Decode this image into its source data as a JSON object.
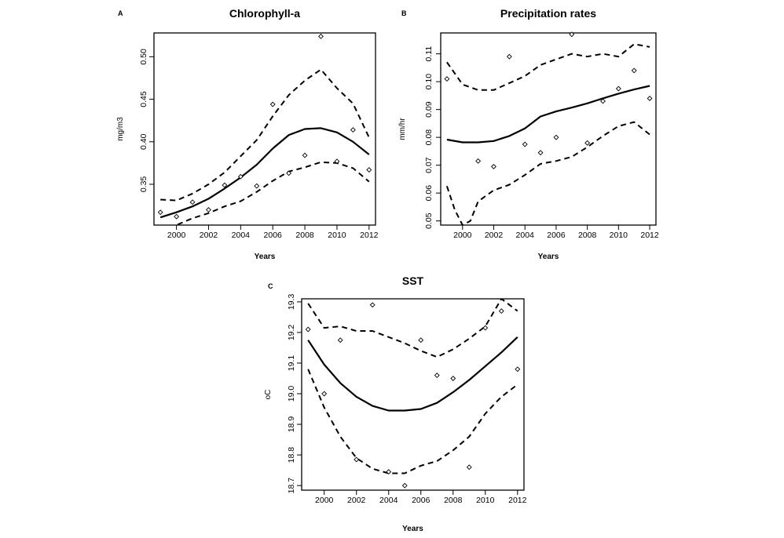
{
  "chart_data": [
    {
      "panel": "A",
      "type": "line",
      "title": "Chlorophyll-a",
      "xlabel": "Years",
      "ylabel": "mg/m3",
      "xlim": [
        1998.6,
        2012.4
      ],
      "ylim": [
        0.302,
        0.528
      ],
      "xticks": [
        2000,
        2002,
        2004,
        2006,
        2008,
        2010,
        2012
      ],
      "yticks": [
        0.35,
        0.4,
        0.45,
        0.5
      ],
      "ytick_labels": [
        "0.35",
        "0.40",
        "0.45",
        "0.50"
      ],
      "points": {
        "x": [
          1999,
          2000,
          2001,
          2002,
          2003,
          2004,
          2005,
          2006,
          2007,
          2008,
          2009,
          2010,
          2011,
          2012
        ],
        "y": [
          0.317,
          0.312,
          0.329,
          0.32,
          0.349,
          0.359,
          0.348,
          0.444,
          0.363,
          0.384,
          0.524,
          0.377,
          0.414,
          0.367
        ]
      },
      "fit": {
        "x": [
          1999,
          2000,
          2001,
          2002,
          2003,
          2004,
          2005,
          2006,
          2007,
          2008,
          2009,
          2010,
          2011,
          2012
        ],
        "y": [
          0.311,
          0.317,
          0.324,
          0.333,
          0.345,
          0.358,
          0.373,
          0.392,
          0.408,
          0.415,
          0.416,
          0.411,
          0.4,
          0.385
        ]
      },
      "upper": {
        "x": [
          1999,
          2000,
          2001,
          2002,
          2003,
          2004,
          2005,
          2006,
          2007,
          2008,
          2009,
          2010,
          2011,
          2012
        ],
        "y": [
          0.332,
          0.331,
          0.339,
          0.35,
          0.364,
          0.383,
          0.402,
          0.43,
          0.455,
          0.472,
          0.485,
          0.463,
          0.445,
          0.405
        ]
      },
      "lower": {
        "x": [
          1999.5,
          2000,
          2001,
          2002,
          2003,
          2004,
          2005,
          2006,
          2007,
          2008,
          2009,
          2010,
          2011,
          2012
        ],
        "y": [
          0.3,
          0.302,
          0.31,
          0.316,
          0.324,
          0.33,
          0.341,
          0.354,
          0.365,
          0.37,
          0.376,
          0.375,
          0.369,
          0.353
        ]
      }
    },
    {
      "panel": "B",
      "type": "line",
      "title": "Precipitation rates",
      "xlabel": "Years",
      "ylabel": "mm/hr",
      "xlim": [
        1998.6,
        2012.4
      ],
      "ylim": [
        0.0485,
        0.1175
      ],
      "xticks": [
        2000,
        2002,
        2004,
        2006,
        2008,
        2010,
        2012
      ],
      "yticks": [
        0.05,
        0.06,
        0.07,
        0.08,
        0.09,
        0.1,
        0.11
      ],
      "ytick_labels": [
        "0.05",
        "0.06",
        "0.07",
        "0.08",
        "0.09",
        "0.10",
        "0.11"
      ],
      "points": {
        "x": [
          1999,
          2001,
          2002,
          2003,
          2004,
          2005,
          2006,
          2007,
          2008,
          2009,
          2010,
          2011,
          2012
        ],
        "y": [
          0.101,
          0.0715,
          0.0695,
          0.109,
          0.0775,
          0.0745,
          0.08,
          0.117,
          0.078,
          0.093,
          0.0975,
          0.104,
          0.094
        ]
      },
      "fit": {
        "x": [
          1999,
          2000,
          2001,
          2002,
          2003,
          2004,
          2005,
          2006,
          2007,
          2008,
          2009,
          2010,
          2011,
          2012
        ],
        "y": [
          0.0792,
          0.0782,
          0.0782,
          0.0787,
          0.0805,
          0.0832,
          0.0875,
          0.0893,
          0.0907,
          0.0922,
          0.094,
          0.0957,
          0.0972,
          0.0985
        ]
      },
      "upper": {
        "x": [
          1999,
          2000,
          2001,
          2002,
          2003,
          2004,
          2005,
          2006,
          2007,
          2008,
          2009,
          2010,
          2011,
          2012
        ],
        "y": [
          0.107,
          0.099,
          0.097,
          0.097,
          0.0995,
          0.102,
          0.106,
          0.108,
          0.11,
          0.109,
          0.11,
          0.109,
          0.1135,
          0.1125
        ]
      },
      "lower": {
        "x": [
          1999,
          1999.5,
          2000,
          2000.5,
          2001,
          2002,
          2003,
          2004,
          2005,
          2006,
          2007,
          2008,
          2009,
          2010,
          2011,
          2012
        ],
        "y": [
          0.0625,
          0.054,
          0.0485,
          0.05,
          0.057,
          0.061,
          0.063,
          0.0665,
          0.0705,
          0.0715,
          0.073,
          0.0765,
          0.0805,
          0.084,
          0.0855,
          0.081
        ]
      }
    },
    {
      "panel": "C",
      "type": "line",
      "title": "SST",
      "xlabel": "Years",
      "ylabel": "oC",
      "xlim": [
        1998.6,
        2012.4
      ],
      "ylim": [
        18.685,
        19.31
      ],
      "xticks": [
        2000,
        2002,
        2004,
        2006,
        2008,
        2010,
        2012
      ],
      "yticks": [
        18.7,
        18.8,
        18.9,
        19.0,
        19.1,
        19.2,
        19.3
      ],
      "ytick_labels": [
        "18.7",
        "18.8",
        "18.9",
        "19.0",
        "19.1",
        "19.2",
        "19.3"
      ],
      "points": {
        "x": [
          1999,
          2000,
          2001,
          2002,
          2003,
          2004,
          2005,
          2006,
          2007,
          2008,
          2009,
          2010,
          2011,
          2012
        ],
        "y": [
          19.21,
          19.0,
          19.175,
          18.785,
          19.29,
          18.745,
          18.7,
          19.175,
          19.06,
          19.05,
          18.76,
          19.215,
          19.27,
          19.08
        ]
      },
      "fit": {
        "x": [
          1999,
          2000,
          2001,
          2002,
          2003,
          2004,
          2005,
          2006,
          2007,
          2008,
          2009,
          2010,
          2011,
          2012
        ],
        "y": [
          19.175,
          19.095,
          19.035,
          18.99,
          18.96,
          18.945,
          18.945,
          18.95,
          18.97,
          19.005,
          19.045,
          19.09,
          19.135,
          19.185
        ]
      },
      "upper": {
        "x": [
          1999,
          2000,
          2001,
          2002,
          2003,
          2004,
          2005,
          2006,
          2007,
          2008,
          2009,
          2010,
          2011,
          2012
        ],
        "y": [
          19.295,
          19.215,
          19.22,
          19.205,
          19.205,
          19.185,
          19.165,
          19.14,
          19.12,
          19.145,
          19.18,
          19.22,
          19.31,
          19.27
        ]
      },
      "lower": {
        "x": [
          1999,
          2000,
          2001,
          2002,
          2003,
          2004,
          2005,
          2006,
          2007,
          2008,
          2009,
          2010,
          2011,
          2012
        ],
        "y": [
          19.08,
          18.955,
          18.86,
          18.79,
          18.755,
          18.74,
          18.74,
          18.765,
          18.78,
          18.815,
          18.86,
          18.935,
          18.99,
          19.03
        ]
      }
    }
  ]
}
